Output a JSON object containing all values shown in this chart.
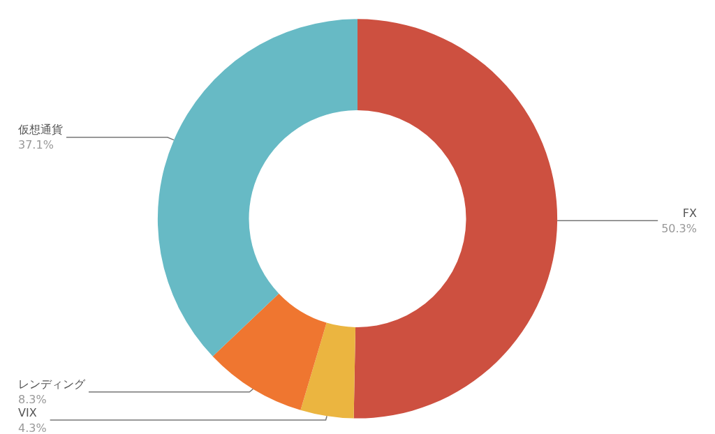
{
  "chart_data": {
    "type": "donut",
    "categories": [
      "FX",
      "VIX",
      "レンディング",
      "仮想通貨"
    ],
    "values": [
      50.3,
      4.3,
      8.3,
      37.1
    ],
    "colors": [
      "#cd5040",
      "#ebb540",
      "#ef7630",
      "#67bac5"
    ],
    "value_labels": [
      "50.3%",
      "4.3%",
      "8.3%",
      "37.1%"
    ],
    "legend": false
  }
}
